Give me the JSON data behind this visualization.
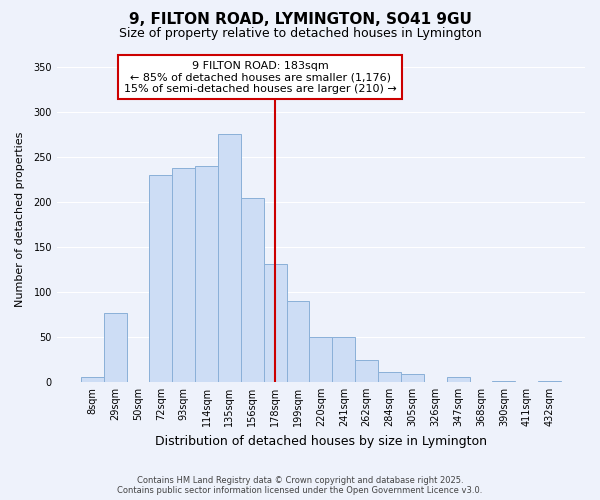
{
  "title": "9, FILTON ROAD, LYMINGTON, SO41 9GU",
  "subtitle": "Size of property relative to detached houses in Lymington",
  "xlabel": "Distribution of detached houses by size in Lymington",
  "ylabel": "Number of detached properties",
  "bar_labels": [
    "8sqm",
    "29sqm",
    "50sqm",
    "72sqm",
    "93sqm",
    "114sqm",
    "135sqm",
    "156sqm",
    "178sqm",
    "199sqm",
    "220sqm",
    "241sqm",
    "262sqm",
    "284sqm",
    "305sqm",
    "326sqm",
    "347sqm",
    "368sqm",
    "390sqm",
    "411sqm",
    "432sqm"
  ],
  "bar_values": [
    6,
    77,
    0,
    230,
    237,
    240,
    275,
    204,
    131,
    90,
    50,
    50,
    24,
    11,
    9,
    0,
    5,
    0,
    1,
    0,
    1
  ],
  "bar_color": "#cdddf5",
  "bar_edge_color": "#8ab0d8",
  "vline_x_index": 8,
  "vline_color": "#cc0000",
  "vline_label_title": "9 FILTON ROAD: 183sqm",
  "vline_label_line1": "← 85% of detached houses are smaller (1,176)",
  "vline_label_line2": "15% of semi-detached houses are larger (210) →",
  "ylim": [
    0,
    360
  ],
  "yticks": [
    0,
    50,
    100,
    150,
    200,
    250,
    300,
    350
  ],
  "footer_line1": "Contains HM Land Registry data © Crown copyright and database right 2025.",
  "footer_line2": "Contains public sector information licensed under the Open Government Licence v3.0.",
  "bg_color": "#eef2fb",
  "grid_color": "#ffffff",
  "title_fontsize": 11,
  "subtitle_fontsize": 9,
  "xlabel_fontsize": 9,
  "ylabel_fontsize": 8,
  "tick_fontsize": 7,
  "annotation_fontsize": 8
}
